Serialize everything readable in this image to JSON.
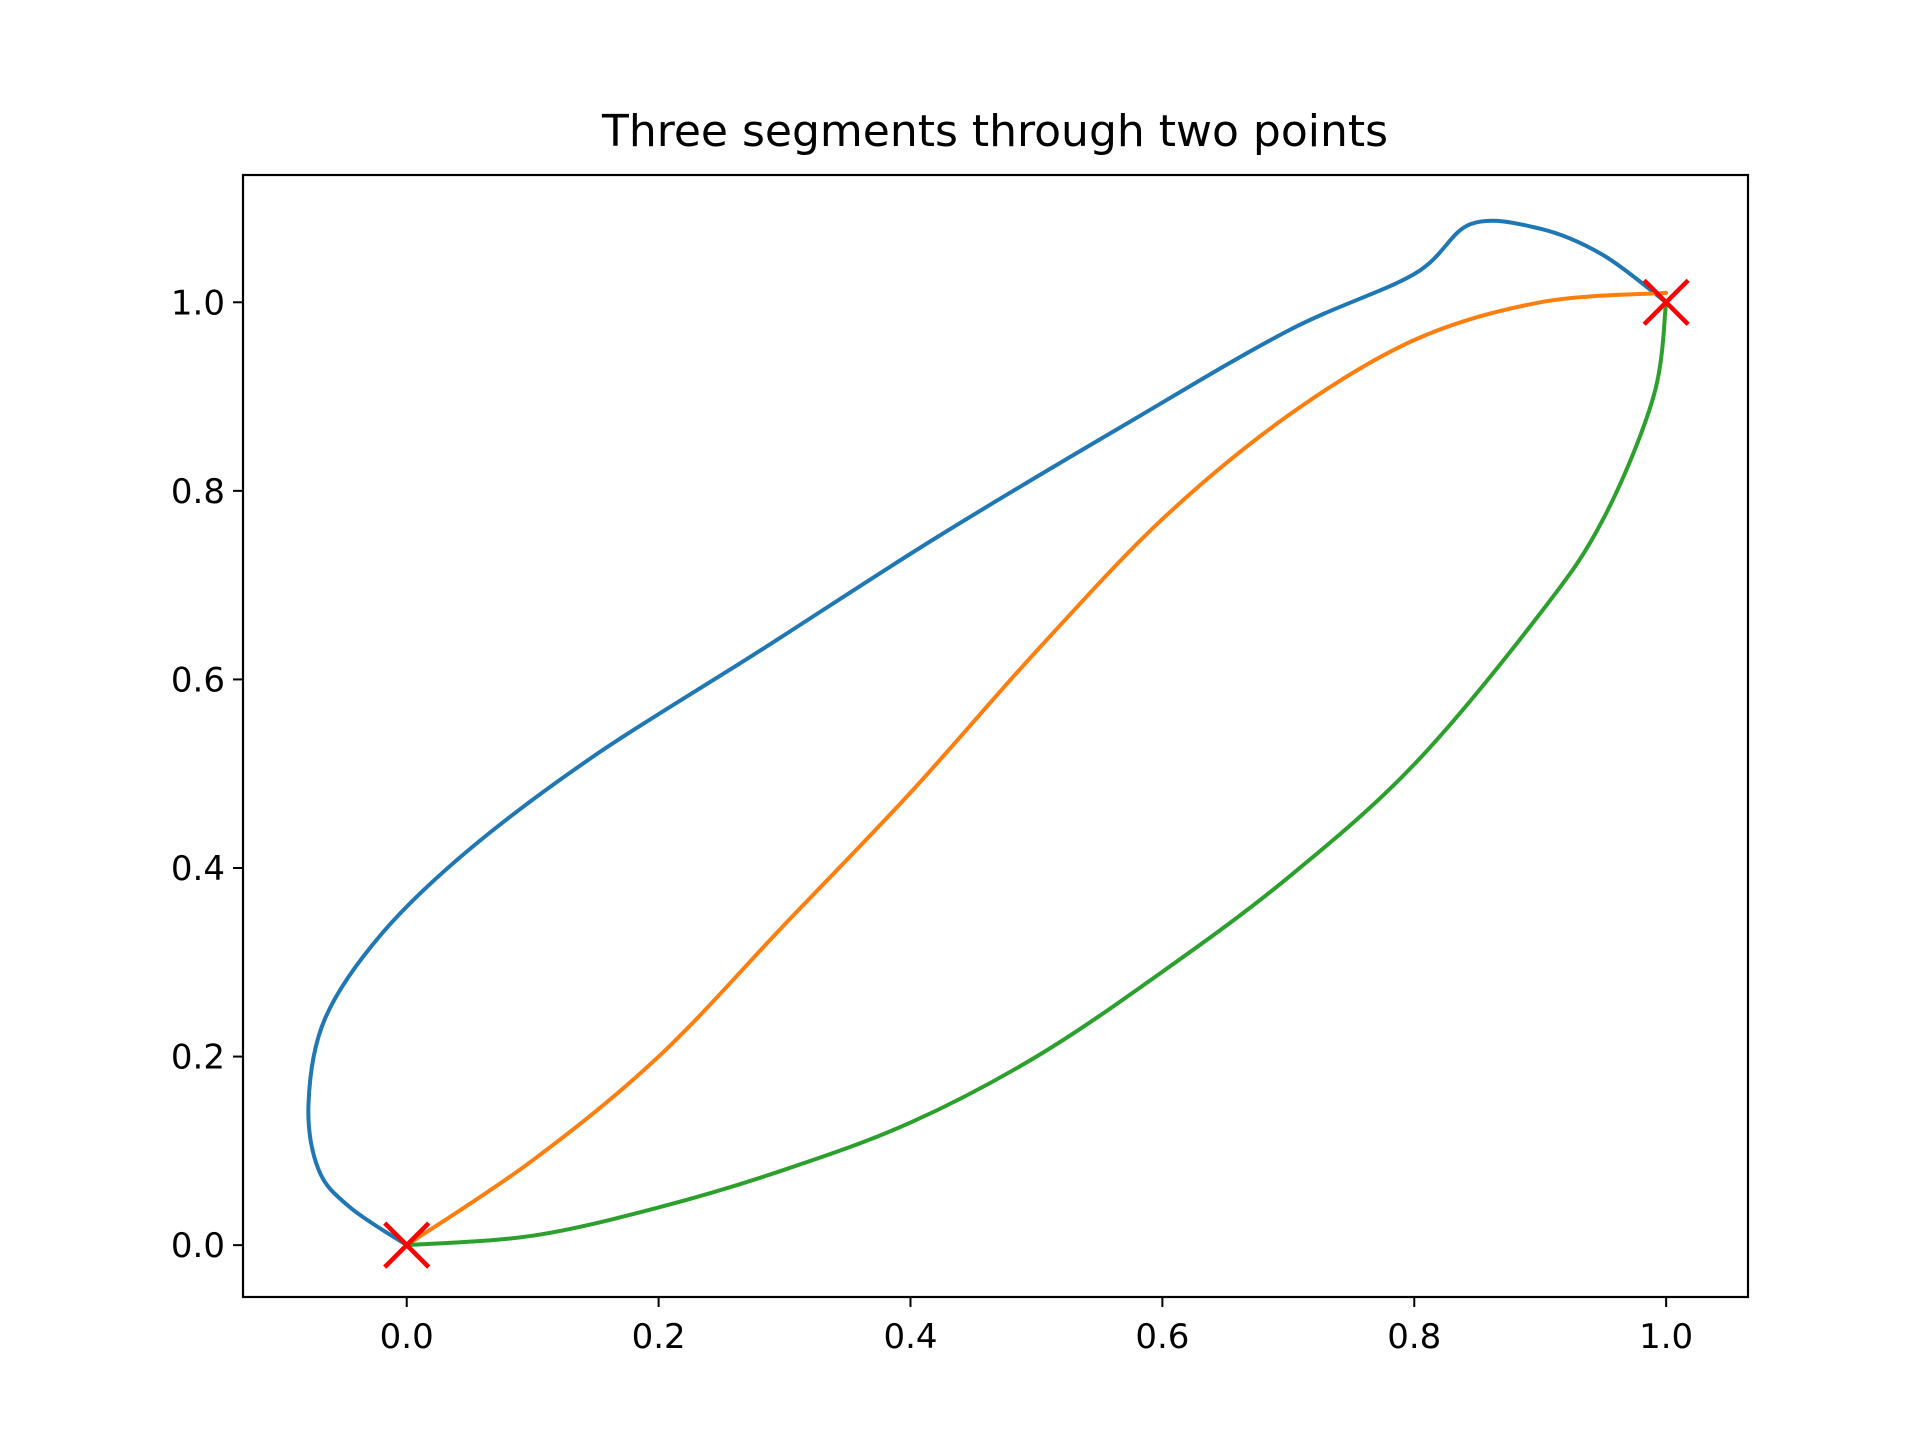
{
  "chart_data": {
    "type": "line",
    "title": "Three segments through two points",
    "xlabel": "",
    "ylabel": "",
    "xlim": [
      -0.13,
      1.065
    ],
    "ylim": [
      -0.055,
      1.135
    ],
    "xticks": [
      0.0,
      0.2,
      0.4,
      0.6,
      0.8,
      1.0
    ],
    "xtick_labels": [
      "0.0",
      "0.2",
      "0.4",
      "0.6",
      "0.8",
      "1.0"
    ],
    "yticks": [
      0.0,
      0.2,
      0.4,
      0.6,
      0.8,
      1.0
    ],
    "ytick_labels": [
      "0.0",
      "0.2",
      "0.4",
      "0.6",
      "0.8",
      "1.0"
    ],
    "grid": false,
    "legend": "none",
    "series": [
      {
        "color": "#1f77b4",
        "points": [
          [
            0.0,
            0.0
          ],
          [
            -0.045,
            0.04
          ],
          [
            -0.07,
            0.08
          ],
          [
            -0.078,
            0.15
          ],
          [
            -0.065,
            0.24
          ],
          [
            -0.02,
            0.33
          ],
          [
            0.05,
            0.42
          ],
          [
            0.15,
            0.52
          ],
          [
            0.28,
            0.63
          ],
          [
            0.42,
            0.75
          ],
          [
            0.57,
            0.87
          ],
          [
            0.7,
            0.97
          ],
          [
            0.8,
            1.03
          ],
          [
            0.845,
            1.083
          ],
          [
            0.9,
            1.078
          ],
          [
            0.95,
            1.05
          ],
          [
            1.0,
            1.0
          ]
        ]
      },
      {
        "color": "#ff7f0e",
        "points": [
          [
            0.0,
            0.0
          ],
          [
            0.1,
            0.09
          ],
          [
            0.2,
            0.2
          ],
          [
            0.3,
            0.34
          ],
          [
            0.4,
            0.48
          ],
          [
            0.5,
            0.63
          ],
          [
            0.6,
            0.77
          ],
          [
            0.7,
            0.88
          ],
          [
            0.8,
            0.96
          ],
          [
            0.9,
            1.0
          ],
          [
            1.0,
            1.01
          ]
        ]
      },
      {
        "color": "#2ca02c",
        "points": [
          [
            0.0,
            0.0
          ],
          [
            0.1,
            0.01
          ],
          [
            0.2,
            0.04
          ],
          [
            0.3,
            0.08
          ],
          [
            0.4,
            0.13
          ],
          [
            0.5,
            0.2
          ],
          [
            0.6,
            0.29
          ],
          [
            0.7,
            0.39
          ],
          [
            0.8,
            0.51
          ],
          [
            0.9,
            0.67
          ],
          [
            0.95,
            0.77
          ],
          [
            0.99,
            0.9
          ],
          [
            1.0,
            1.0
          ]
        ]
      }
    ],
    "markers": {
      "symbol": "x",
      "color": "#ff0000",
      "points": [
        [
          0.0,
          0.0
        ],
        [
          1.0,
          1.0
        ]
      ]
    }
  }
}
